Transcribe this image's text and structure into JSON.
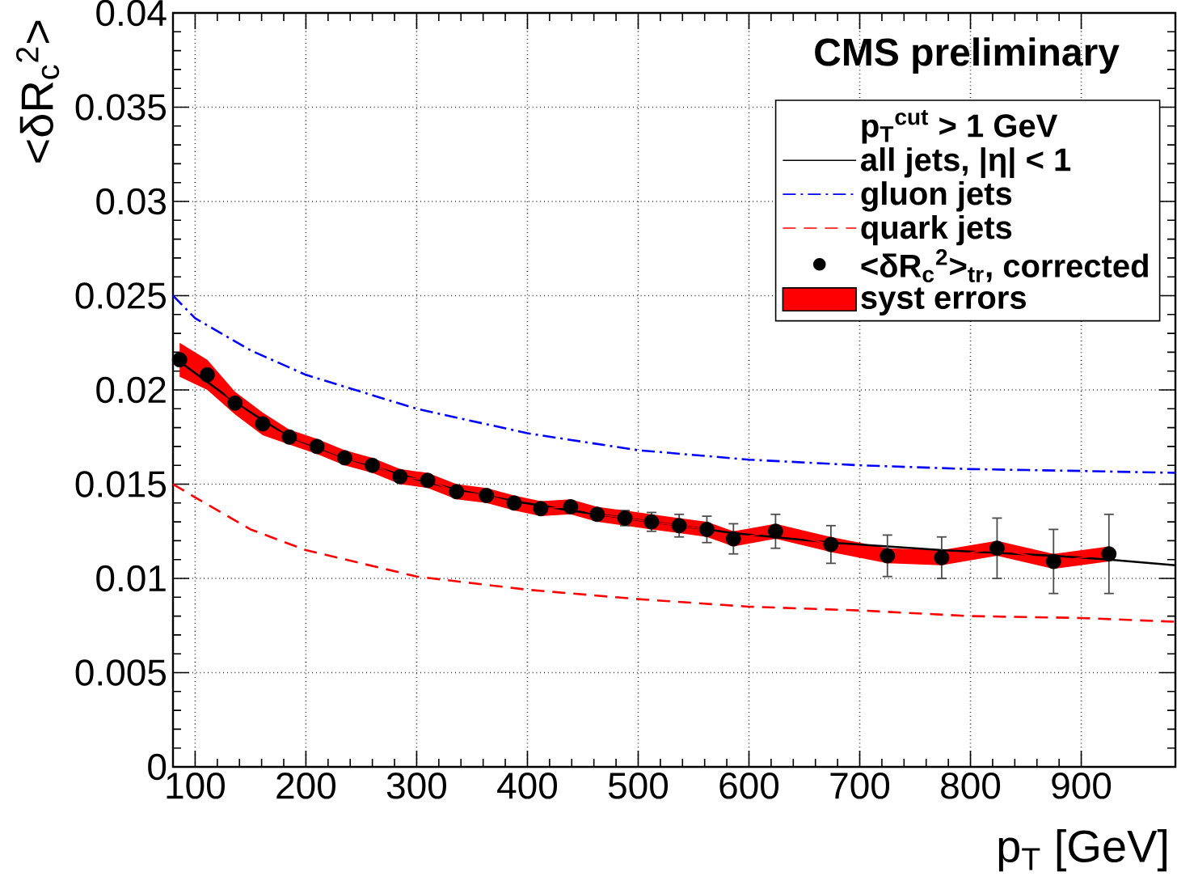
{
  "chart_data": {
    "type": "line",
    "xlabel": "p$_{T}$ [GeV]",
    "ylabel": "<δR$_{c}$$^{2}$>",
    "legend_title": "p$_{T}$$^{cut}$ > 1 GeV",
    "annotations": [
      "CMS preliminary"
    ],
    "xlim": [
      80,
      985
    ],
    "ylim": [
      0,
      0.04
    ],
    "xticks": [
      100,
      200,
      300,
      400,
      500,
      600,
      700,
      800,
      900
    ],
    "yticks": [
      0,
      0.005,
      0.01,
      0.015,
      0.02,
      0.025,
      0.03,
      0.035,
      0.04
    ],
    "grid": true,
    "legend": "top right",
    "series": [
      {
        "name": "all jets, |η| < 1",
        "color": "#000000",
        "line_style": "solid",
        "x": [
          86,
          137,
          185,
          235,
          285,
          336,
          388,
          439,
          488,
          537,
          586,
          674,
          774,
          875,
          925,
          985
        ],
        "values": [
          0.0215,
          0.0193,
          0.0175,
          0.0164,
          0.0155,
          0.0147,
          0.0141,
          0.0136,
          0.0132,
          0.0128,
          0.0124,
          0.0119,
          0.0115,
          0.0112,
          0.011,
          0.0107
        ]
      },
      {
        "name": "gluon jets",
        "type": "line",
        "color": "#0000ff",
        "line_style": "dashdot",
        "x": [
          80,
          100,
          150,
          200,
          300,
          400,
          500,
          600,
          700,
          800,
          900,
          985
        ],
        "values": [
          0.025,
          0.0238,
          0.0221,
          0.0208,
          0.019,
          0.0177,
          0.0168,
          0.0163,
          0.016,
          0.0158,
          0.0157,
          0.0156
        ]
      },
      {
        "name": "quark jets",
        "type": "line",
        "color": "#ff0000",
        "line_style": "dashed",
        "x": [
          80,
          100,
          150,
          200,
          300,
          400,
          500,
          600,
          700,
          800,
          900,
          985
        ],
        "values": [
          0.015,
          0.0143,
          0.0126,
          0.0115,
          0.0101,
          0.0094,
          0.0089,
          0.0085,
          0.0083,
          0.008,
          0.0079,
          0.0077
        ]
      },
      {
        "name": "<δR$_{c}$$^{2}$>$_{tr}$, corrected",
        "type": "scatter",
        "marker": "circle",
        "color": "#000000",
        "x": [
          86,
          111,
          136,
          161,
          185,
          210,
          235,
          260,
          285,
          310,
          336,
          363,
          388,
          412,
          439,
          463,
          488,
          512,
          537,
          562,
          586,
          624,
          674,
          725,
          774,
          824,
          875,
          925
        ],
        "values": [
          0.0216,
          0.0208,
          0.0193,
          0.0182,
          0.0175,
          0.017,
          0.0164,
          0.016,
          0.0154,
          0.0152,
          0.0146,
          0.0144,
          0.014,
          0.0137,
          0.0138,
          0.0134,
          0.0132,
          0.013,
          0.0128,
          0.0126,
          0.0121,
          0.0125,
          0.0118,
          0.0112,
          0.0111,
          0.0116,
          0.0109,
          0.0113
        ],
        "errors": [
          null,
          null,
          null,
          null,
          null,
          null,
          null,
          null,
          null,
          null,
          null,
          null,
          null,
          null,
          0.0003,
          0.0003,
          0.0004,
          0.0005,
          0.0006,
          0.0007,
          0.0008,
          0.0009,
          0.001,
          0.0011,
          0.0011,
          0.0016,
          0.0017,
          0.0021
        ]
      },
      {
        "name": "syst errors",
        "type": "line",
        "color": "#ff0000",
        "x": [
          86,
          111,
          136,
          161,
          185,
          210,
          235,
          260,
          285,
          310,
          336,
          363,
          388,
          412,
          439,
          463,
          488,
          512,
          537,
          562,
          586,
          624,
          674,
          725,
          774,
          824,
          875,
          925
        ],
        "values": [
          0.0216,
          0.0208,
          0.0193,
          0.0182,
          0.0175,
          0.017,
          0.0164,
          0.016,
          0.0154,
          0.0152,
          0.0146,
          0.0144,
          0.014,
          0.0137,
          0.0138,
          0.0134,
          0.0132,
          0.013,
          0.0128,
          0.0126,
          0.0121,
          0.0125,
          0.0118,
          0.0112,
          0.0111,
          0.0116,
          0.0109,
          0.0113
        ],
        "upper": [
          0.0225,
          0.0216,
          0.0199,
          0.0188,
          0.0179,
          0.0174,
          0.0168,
          0.0164,
          0.0158,
          0.0156,
          0.015,
          0.0148,
          0.0144,
          0.0141,
          0.0142,
          0.0138,
          0.0136,
          0.0134,
          0.0132,
          0.013,
          0.0125,
          0.0129,
          0.0122,
          0.0116,
          0.0115,
          0.012,
          0.0113,
          0.0117
        ],
        "lower": [
          0.0207,
          0.02,
          0.0187,
          0.0176,
          0.0171,
          0.0166,
          0.016,
          0.0156,
          0.015,
          0.0148,
          0.0142,
          0.014,
          0.0136,
          0.0133,
          0.0134,
          0.013,
          0.0128,
          0.0126,
          0.0124,
          0.0122,
          0.0117,
          0.0121,
          0.0114,
          0.0108,
          0.0107,
          0.0112,
          0.0105,
          0.0109
        ]
      }
    ]
  }
}
